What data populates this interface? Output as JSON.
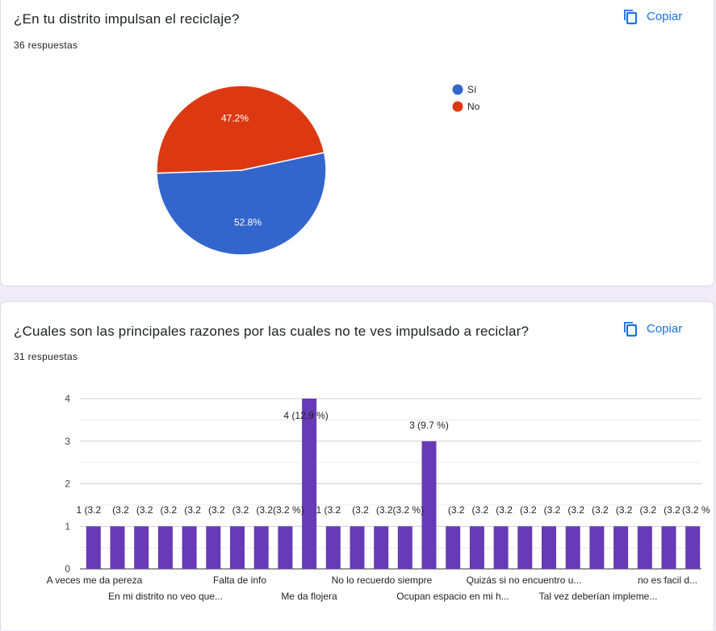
{
  "question1": {
    "title": "¿En tu distrito impulsan el reciclaje?",
    "responses": "36 respuestas",
    "copy_label": "Copiar",
    "copy_icon": "copy-icon"
  },
  "question2": {
    "title": "¿Cuales son las principales razones por las cuales no te ves impulsado a reciclar?",
    "responses": "31 respuestas",
    "copy_label": "Copiar",
    "copy_icon": "copy-icon"
  },
  "chart_data": [
    {
      "type": "pie",
      "categories": [
        "Sí",
        "No"
      ],
      "values": [
        52.8,
        47.2
      ],
      "slice_labels": [
        "52.8%",
        "47.2%"
      ],
      "colors": [
        "#3366cc",
        "#dc3912"
      ],
      "legend_position": "right"
    },
    {
      "type": "bar",
      "color": "#673ab7",
      "ylim": [
        0,
        4
      ],
      "yticks": [
        0,
        1,
        2,
        3,
        4
      ],
      "grid": true,
      "values": [
        1,
        1,
        1,
        1,
        1,
        1,
        1,
        1,
        1,
        4,
        1,
        1,
        1,
        1,
        3,
        1,
        1,
        1,
        1,
        1,
        1,
        1,
        1,
        1,
        1,
        1
      ],
      "data_labels": [
        "1 (3.2",
        "(3.2",
        "(3.2",
        "(3.2",
        "(3.2",
        "(3.2",
        "(3.2",
        "(3.2",
        "(3.2 %)",
        "4 (12.9 %)",
        "1 (3.2",
        "(3.2",
        "(3.2",
        "(3.2 %)",
        "3 (9.7 %)",
        "(3.2",
        "(3.2",
        "(3.2",
        "(3.2",
        "(3.2",
        "(3.2",
        "(3.2",
        "(3.2",
        "(3.2",
        "(3.2",
        "(3.2 %"
      ],
      "xtick_labels_top": [
        "A veces me da pereza",
        "Falta de info",
        "No lo recuerdo siempre",
        "Quizás si no encuentro u...",
        "no es facil d..."
      ],
      "xtick_labels_bottom": [
        "En mi distrito no veo que...",
        "Me da flojera",
        "Ocupan espacio en mi h...",
        "Tal vez deberían impleme..."
      ]
    }
  ]
}
